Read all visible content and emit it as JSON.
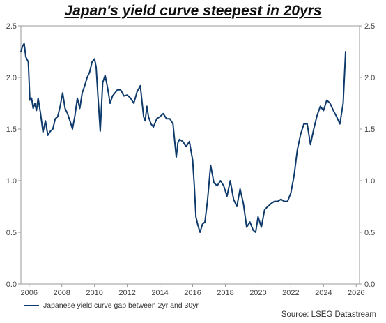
{
  "title": "Japan's yield curve steepest in 20yrs",
  "source": "Source: LSEG Datastream",
  "chart_data": {
    "type": "line",
    "title": "Japan's yield curve steepest in 20yrs",
    "xlabel": "",
    "ylabel": "",
    "xlim": [
      2005.5,
      2026.2
    ],
    "ylim": [
      0.0,
      2.5
    ],
    "x_ticks": [
      "2006",
      "2008",
      "2010",
      "2012",
      "2014",
      "2016",
      "2018",
      "2020",
      "2022",
      "2024",
      "2026"
    ],
    "y_ticks": [
      "0.0",
      "0.5",
      "1.0",
      "1.5",
      "2.0",
      "2.5"
    ],
    "grid": false,
    "legend": "bottom-left",
    "series": [
      {
        "name": "Japanese yield curve gap between 2yr and 30yr",
        "color": "#0e3a6b",
        "x": [
          2005.5,
          2005.6,
          2005.7,
          2005.8,
          2005.95,
          2006.05,
          2006.15,
          2006.25,
          2006.35,
          2006.45,
          2006.55,
          2006.7,
          2006.85,
          2007.0,
          2007.15,
          2007.3,
          2007.45,
          2007.6,
          2007.75,
          2007.9,
          2008.05,
          2008.2,
          2008.35,
          2008.5,
          2008.65,
          2008.8,
          2008.95,
          2009.1,
          2009.25,
          2009.4,
          2009.55,
          2009.7,
          2009.85,
          2010.0,
          2010.1,
          2010.2,
          2010.35,
          2010.5,
          2010.65,
          2010.8,
          2010.95,
          2011.1,
          2011.25,
          2011.4,
          2011.6,
          2011.8,
          2012.0,
          2012.2,
          2012.4,
          2012.6,
          2012.8,
          2013.0,
          2013.1,
          2013.2,
          2013.3,
          2013.45,
          2013.6,
          2013.8,
          2014.0,
          2014.2,
          2014.4,
          2014.6,
          2014.8,
          2015.0,
          2015.1,
          2015.2,
          2015.4,
          2015.6,
          2015.8,
          2016.0,
          2016.1,
          2016.2,
          2016.3,
          2016.45,
          2016.6,
          2016.75,
          2016.9,
          2017.1,
          2017.3,
          2017.5,
          2017.7,
          2017.9,
          2018.1,
          2018.3,
          2018.5,
          2018.7,
          2018.9,
          2019.1,
          2019.3,
          2019.5,
          2019.7,
          2019.85,
          2020.0,
          2020.2,
          2020.4,
          2020.6,
          2020.8,
          2021.0,
          2021.2,
          2021.4,
          2021.6,
          2021.8,
          2022.0,
          2022.2,
          2022.4,
          2022.6,
          2022.8,
          2023.0,
          2023.2,
          2023.4,
          2023.6,
          2023.8,
          2024.0,
          2024.2,
          2024.4,
          2024.6,
          2024.8,
          2025.0,
          2025.2,
          2025.35
        ],
        "values": [
          2.25,
          2.3,
          2.33,
          2.2,
          2.15,
          1.78,
          1.8,
          1.7,
          1.75,
          1.68,
          1.8,
          1.65,
          1.47,
          1.58,
          1.44,
          1.48,
          1.5,
          1.6,
          1.62,
          1.72,
          1.85,
          1.7,
          1.65,
          1.58,
          1.5,
          1.63,
          1.8,
          1.7,
          1.85,
          1.92,
          2.0,
          2.05,
          2.15,
          2.18,
          2.1,
          1.85,
          1.48,
          1.95,
          2.02,
          1.9,
          1.75,
          1.82,
          1.85,
          1.88,
          1.88,
          1.82,
          1.83,
          1.8,
          1.75,
          1.86,
          1.92,
          1.62,
          1.58,
          1.72,
          1.62,
          1.55,
          1.52,
          1.6,
          1.62,
          1.65,
          1.6,
          1.6,
          1.55,
          1.23,
          1.37,
          1.4,
          1.38,
          1.33,
          1.38,
          1.2,
          0.95,
          0.65,
          0.58,
          0.5,
          0.58,
          0.6,
          0.8,
          1.15,
          0.98,
          0.95,
          1.0,
          0.95,
          0.85,
          1.0,
          0.82,
          0.75,
          0.92,
          0.78,
          0.55,
          0.6,
          0.52,
          0.5,
          0.65,
          0.55,
          0.72,
          0.75,
          0.78,
          0.8,
          0.8,
          0.82,
          0.8,
          0.8,
          0.88,
          1.05,
          1.3,
          1.45,
          1.55,
          1.55,
          1.35,
          1.5,
          1.63,
          1.72,
          1.68,
          1.78,
          1.75,
          1.68,
          1.62,
          1.55,
          1.75,
          2.25
        ]
      }
    ]
  }
}
